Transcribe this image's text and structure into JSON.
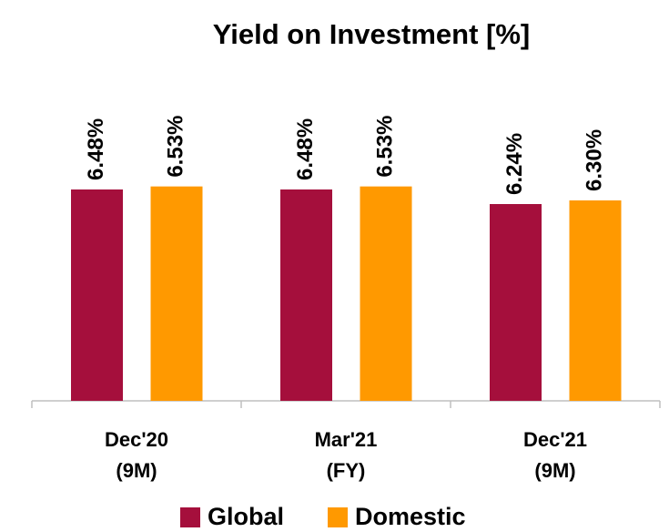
{
  "chart_data": {
    "type": "bar",
    "title": "Yield on Investment [%]",
    "categories": [
      "Dec'20\n(9M)",
      "Mar'21\n(FY)",
      "Dec'21\n(9M)"
    ],
    "series": [
      {
        "name": "Global",
        "color": "#a50f3c",
        "values": [
          6.48,
          6.48,
          6.24
        ],
        "value_labels": [
          "6.48%",
          "6.48%",
          "6.24%"
        ]
      },
      {
        "name": "Domestic",
        "color": "#ff9900",
        "values": [
          6.53,
          6.53,
          6.3
        ],
        "value_labels": [
          "6.53%",
          "6.53%",
          "6.30%"
        ]
      }
    ],
    "ylim": [
      3,
      7.5
    ],
    "legend": "bottom"
  }
}
